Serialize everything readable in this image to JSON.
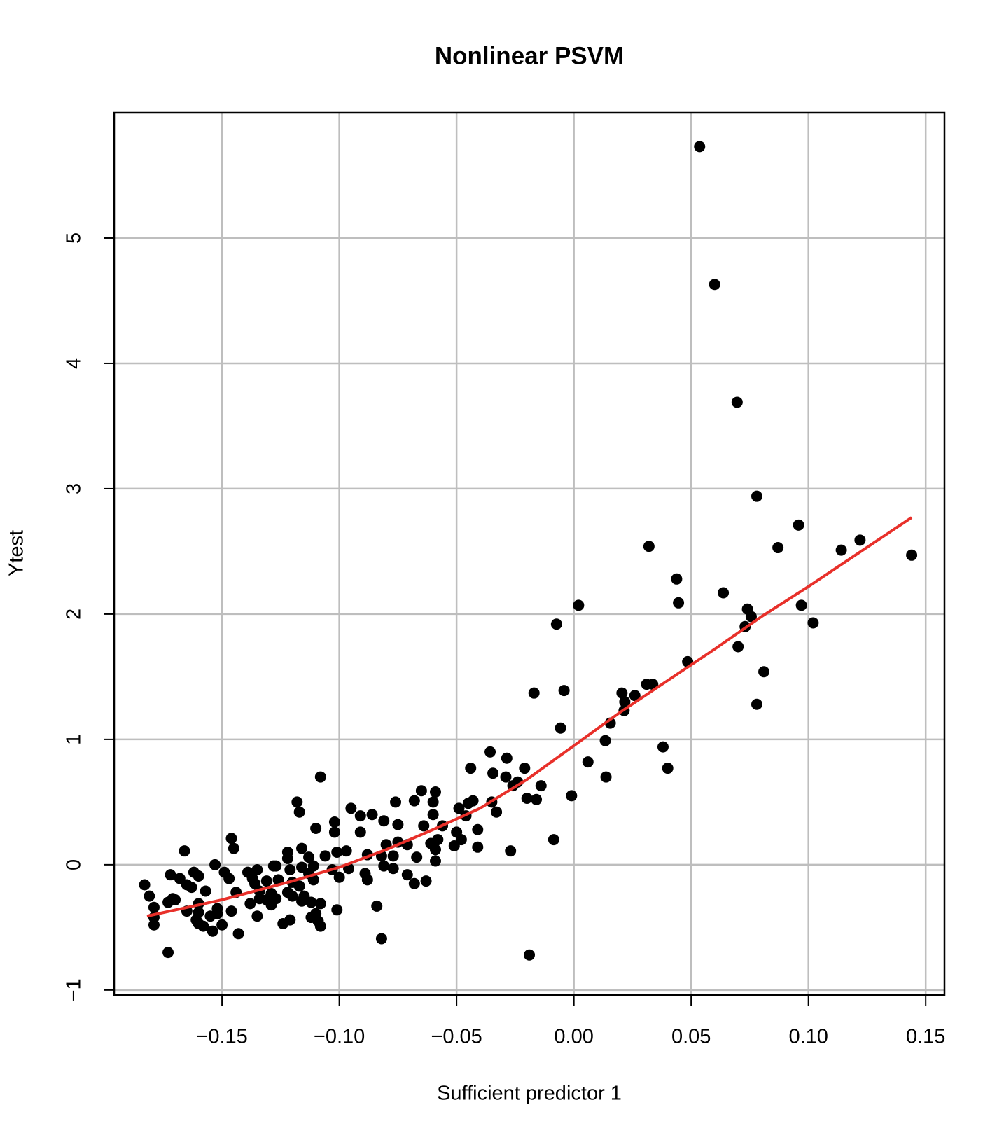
{
  "chart_data": {
    "type": "scatter",
    "title": "Nonlinear PSVM",
    "x_label": "Sufficient predictor 1",
    "y_label": "Ytest",
    "xlim": [
      -0.196,
      0.158
    ],
    "ylim": [
      -1.04,
      6.0
    ],
    "xticks": [
      {
        "value": -0.15,
        "label": "−0.15"
      },
      {
        "value": -0.1,
        "label": "−0.10"
      },
      {
        "value": -0.05,
        "label": "−0.05"
      },
      {
        "value": 0,
        "label": "0.00"
      },
      0.05,
      {
        "value": 0.1,
        "label": "0.10"
      },
      0.15
    ],
    "yticks": [
      {
        "value": -1,
        "label": "−1"
      },
      0,
      1,
      2,
      3,
      4,
      5
    ],
    "grid": true,
    "points": {
      "color": "#000000",
      "x": [
        0.0536,
        0.06,
        0.0696,
        0.078,
        0.0958,
        0.032,
        0.087,
        0.122,
        0.114,
        0.144,
        0.0438,
        0.0637,
        0.0446,
        0.002,
        0.074,
        0.097,
        0.0756,
        -0.0074,
        0.073,
        0.102,
        0.07,
        0.0485,
        0.081,
        0.031,
        0.0336,
        -0.0042,
        -0.017,
        0.0205,
        0.0217,
        0.026,
        0.0214,
        0.0155,
        -0.0057,
        0.078,
        0.0134,
        0.038,
        0.04,
        0.006,
        0.0137,
        -0.001,
        -0.0086,
        -0.019,
        -0.0357,
        -0.0286,
        -0.044,
        -0.0345,
        -0.029,
        -0.021,
        -0.024,
        -0.014,
        -0.02,
        -0.016,
        -0.026,
        -0.059,
        -0.065,
        -0.06,
        -0.068,
        -0.045,
        -0.043,
        -0.035,
        -0.049,
        -0.076,
        -0.033,
        -0.06,
        -0.095,
        -0.046,
        -0.091,
        -0.086,
        -0.081,
        -0.075,
        -0.064,
        -0.056,
        -0.102,
        -0.041,
        -0.05,
        -0.091,
        -0.102,
        -0.048,
        -0.075,
        -0.08,
        -0.071,
        -0.061,
        -0.058,
        -0.059,
        -0.051,
        -0.041,
        -0.027,
        -0.067,
        -0.082,
        -0.077,
        -0.088,
        -0.097,
        -0.101,
        -0.106,
        -0.108,
        -0.11,
        -0.059,
        -0.081,
        -0.077,
        -0.096,
        -0.103,
        -0.089,
        -0.088,
        -0.1,
        -0.071,
        -0.068,
        -0.063,
        -0.084,
        -0.101,
        -0.082,
        -0.109,
        -0.118,
        -0.117,
        -0.122,
        -0.122,
        -0.116,
        -0.113,
        -0.111,
        -0.146,
        -0.145,
        -0.166,
        -0.153,
        -0.162,
        -0.149,
        -0.139,
        -0.135,
        -0.128,
        -0.127,
        -0.121,
        -0.116,
        -0.113,
        -0.111,
        -0.126,
        -0.12,
        -0.117,
        -0.131,
        -0.137,
        -0.136,
        -0.147,
        -0.172,
        -0.168,
        -0.16,
        -0.163,
        -0.165,
        -0.157,
        -0.183,
        -0.181,
        -0.144,
        -0.134,
        -0.129,
        -0.127,
        -0.122,
        -0.12,
        -0.116,
        -0.115,
        -0.138,
        -0.134,
        -0.131,
        -0.129,
        -0.112,
        -0.108,
        -0.11,
        -0.171,
        -0.173,
        -0.16,
        -0.17,
        -0.179,
        -0.152,
        -0.16,
        -0.165,
        -0.161,
        -0.155,
        -0.152,
        -0.146,
        -0.135,
        -0.121,
        -0.124,
        -0.179,
        -0.179,
        -0.16,
        -0.158,
        -0.154,
        -0.15,
        -0.112,
        -0.108,
        -0.143,
        -0.173
      ],
      "y": [
        5.73,
        4.63,
        3.69,
        2.94,
        2.71,
        2.54,
        2.53,
        2.59,
        2.51,
        2.47,
        2.28,
        2.17,
        2.09,
        2.07,
        2.04,
        2.07,
        1.98,
        1.92,
        1.9,
        1.93,
        1.74,
        1.62,
        1.54,
        1.44,
        1.44,
        1.39,
        1.37,
        1.37,
        1.3,
        1.35,
        1.23,
        1.13,
        1.09,
        1.28,
        0.99,
        0.94,
        0.77,
        0.82,
        0.7,
        0.55,
        0.2,
        -0.72,
        0.9,
        0.85,
        0.77,
        0.73,
        0.7,
        0.77,
        0.66,
        0.63,
        0.53,
        0.52,
        0.63,
        0.58,
        0.59,
        0.5,
        0.51,
        0.49,
        0.51,
        0.5,
        0.45,
        0.5,
        0.42,
        0.4,
        0.45,
        0.39,
        0.39,
        0.4,
        0.35,
        0.32,
        0.31,
        0.31,
        0.34,
        0.28,
        0.26,
        0.26,
        0.26,
        0.2,
        0.18,
        0.16,
        0.16,
        0.17,
        0.2,
        0.12,
        0.15,
        0.14,
        0.11,
        0.06,
        0.07,
        0.07,
        0.08,
        0.11,
        0.1,
        0.07,
        0.7,
        0.29,
        0.03,
        -0.01,
        -0.03,
        -0.03,
        -0.04,
        -0.07,
        -0.12,
        -0.1,
        -0.08,
        -0.15,
        -0.13,
        -0.33,
        -0.36,
        -0.59,
        -0.45,
        0.5,
        0.42,
        0.1,
        0.05,
        0.13,
        0.06,
        -0.01,
        0.21,
        0.13,
        0.11,
        0.0,
        -0.06,
        -0.06,
        -0.06,
        -0.04,
        -0.01,
        -0.01,
        -0.04,
        -0.02,
        -0.07,
        -0.12,
        -0.12,
        -0.14,
        -0.17,
        -0.13,
        -0.11,
        -0.15,
        -0.11,
        -0.08,
        -0.11,
        -0.09,
        -0.18,
        -0.16,
        -0.21,
        -0.16,
        -0.25,
        -0.22,
        -0.21,
        -0.23,
        -0.27,
        -0.22,
        -0.25,
        -0.29,
        -0.25,
        -0.31,
        -0.27,
        -0.28,
        -0.32,
        -0.3,
        -0.31,
        -0.39,
        -0.27,
        -0.3,
        -0.31,
        -0.28,
        -0.34,
        -0.35,
        -0.38,
        -0.37,
        -0.44,
        -0.41,
        -0.39,
        -0.37,
        -0.41,
        -0.44,
        -0.47,
        -0.42,
        -0.48,
        -0.47,
        -0.49,
        -0.53,
        -0.48,
        -0.42,
        -0.49,
        -0.55,
        -0.7
      ]
    },
    "line": {
      "color": "#e8302a",
      "x": [
        -0.182,
        -0.15,
        -0.12,
        -0.1,
        -0.08,
        -0.06,
        -0.04,
        -0.02,
        0,
        0.02,
        0.04,
        0.06,
        0.08,
        0.1,
        0.12,
        0.144
      ],
      "y": [
        -0.41,
        -0.28,
        -0.13,
        -0.02,
        0.12,
        0.28,
        0.45,
        0.68,
        0.95,
        1.22,
        1.47,
        1.72,
        1.98,
        2.22,
        2.47,
        2.77
      ]
    }
  }
}
